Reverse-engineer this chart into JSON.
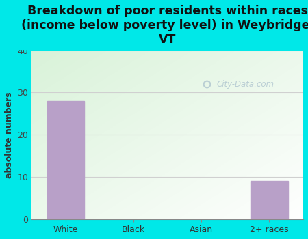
{
  "title": "Breakdown of poor residents within races\n(income below poverty level) in Weybridge,\nVT",
  "categories": [
    "White",
    "Black",
    "Asian",
    "2+ races"
  ],
  "values": [
    28,
    0,
    0,
    9
  ],
  "bar_color": "#b8a0c8",
  "ylabel": "absolute numbers",
  "ylim": [
    0,
    40
  ],
  "yticks": [
    0,
    10,
    20,
    30,
    40
  ],
  "background_outer": "#00e8e8",
  "grid_color": "#d0d0d0",
  "title_fontsize": 12.5,
  "ylabel_fontsize": 9,
  "tick_fontsize": 9,
  "watermark_text": "City-Data.com",
  "watermark_color": "#a0b8c8",
  "watermark_alpha": 0.65
}
